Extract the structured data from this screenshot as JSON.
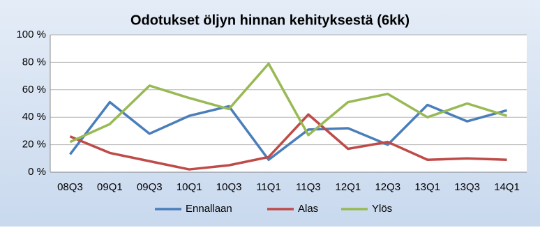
{
  "chart_data": {
    "type": "line",
    "title": "Odotukset öljyn hinnan kehityksestä (6kk)",
    "categories": [
      "08Q3",
      "09Q1",
      "09Q3",
      "10Q1",
      "10Q3",
      "11Q1",
      "11Q3",
      "12Q1",
      "12Q3",
      "13Q1",
      "13Q3",
      "14Q1"
    ],
    "series": [
      {
        "name": "Ennallaan",
        "color": "#4a7ebb",
        "values": [
          13,
          51,
          28,
          41,
          48,
          9,
          31,
          32,
          20,
          49,
          37,
          45
        ]
      },
      {
        "name": "Alas",
        "color": "#be4b48",
        "values": [
          26,
          14,
          8,
          2,
          5,
          11,
          42,
          17,
          22,
          9,
          10,
          9
        ]
      },
      {
        "name": "Ylös",
        "color": "#98b954",
        "values": [
          22,
          35,
          63,
          54,
          46,
          79,
          27,
          51,
          57,
          40,
          50,
          41
        ]
      }
    ],
    "ylim": [
      0,
      100
    ],
    "yticks": [
      {
        "value": 0,
        "label": "0 %"
      },
      {
        "value": 20,
        "label": "20 %"
      },
      {
        "value": 40,
        "label": "40 %"
      },
      {
        "value": 60,
        "label": "60 %"
      },
      {
        "value": 80,
        "label": "80 %"
      },
      {
        "value": 100,
        "label": "100 %"
      }
    ],
    "grid": true,
    "legend": "bottom"
  }
}
